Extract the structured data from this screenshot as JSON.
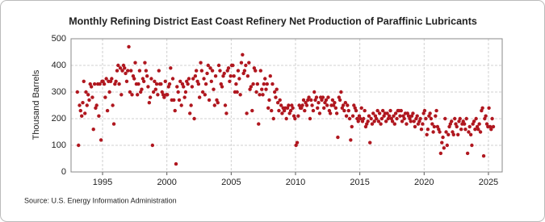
{
  "chart_data": {
    "type": "scatter",
    "title": "Monthly Refining District East Coast Refinery Net Production of Paraffinic Lubricants",
    "y_label": "Thousand Barrels",
    "source": "Source: U.S. Energy Information Administration",
    "xlim": [
      1992.55,
      2026.07
    ],
    "xticks": [
      1995,
      2000,
      2005,
      2010,
      2015,
      2020,
      2025
    ],
    "ylim": [
      0,
      500
    ],
    "yticks": [
      0,
      100,
      200,
      300,
      400,
      500
    ],
    "grid": true,
    "series": [
      {
        "color": "#b0171f",
        "x": [
          1993.04,
          1993.13,
          1993.21,
          1993.29,
          1993.38,
          1993.46,
          1993.54,
          1993.63,
          1993.71,
          1993.79,
          1993.88,
          1993.96,
          1994.04,
          1994.13,
          1994.21,
          1994.29,
          1994.38,
          1994.46,
          1994.54,
          1994.63,
          1994.71,
          1994.79,
          1994.88,
          1994.96,
          1995.04,
          1995.13,
          1995.21,
          1995.29,
          1995.38,
          1995.46,
          1995.54,
          1995.63,
          1995.71,
          1995.79,
          1995.88,
          1995.96,
          1996.04,
          1996.13,
          1996.21,
          1996.29,
          1996.38,
          1996.46,
          1996.54,
          1996.63,
          1996.71,
          1996.79,
          1996.88,
          1996.96,
          1997.04,
          1997.13,
          1997.21,
          1997.29,
          1997.38,
          1997.46,
          1997.54,
          1997.63,
          1997.71,
          1997.79,
          1997.88,
          1997.96,
          1998.04,
          1998.13,
          1998.21,
          1998.29,
          1998.38,
          1998.46,
          1998.54,
          1998.63,
          1998.71,
          1998.79,
          1998.88,
          1998.96,
          1999.04,
          1999.13,
          1999.21,
          1999.29,
          1999.38,
          1999.46,
          1999.54,
          1999.63,
          1999.71,
          1999.79,
          1999.88,
          1999.96,
          2000.04,
          2000.13,
          2000.21,
          2000.29,
          2000.38,
          2000.46,
          2000.54,
          2000.63,
          2000.71,
          2000.79,
          2000.88,
          2000.96,
          2001.04,
          2001.13,
          2001.21,
          2001.29,
          2001.38,
          2001.46,
          2001.54,
          2001.63,
          2001.71,
          2001.79,
          2001.88,
          2001.96,
          2002.04,
          2002.13,
          2002.21,
          2002.29,
          2002.38,
          2002.46,
          2002.54,
          2002.63,
          2002.71,
          2002.79,
          2002.88,
          2002.96,
          2003.04,
          2003.13,
          2003.21,
          2003.29,
          2003.38,
          2003.46,
          2003.54,
          2003.63,
          2003.71,
          2003.79,
          2003.88,
          2003.96,
          2004.04,
          2004.13,
          2004.21,
          2004.29,
          2004.38,
          2004.46,
          2004.54,
          2004.63,
          2004.71,
          2004.79,
          2004.88,
          2004.96,
          2005.04,
          2005.13,
          2005.21,
          2005.29,
          2005.38,
          2005.46,
          2005.54,
          2005.63,
          2005.71,
          2005.79,
          2005.88,
          2005.96,
          2006.04,
          2006.13,
          2006.21,
          2006.29,
          2006.38,
          2006.46,
          2006.54,
          2006.63,
          2006.71,
          2006.79,
          2006.88,
          2006.96,
          2007.04,
          2007.13,
          2007.21,
          2007.29,
          2007.38,
          2007.46,
          2007.54,
          2007.63,
          2007.71,
          2007.79,
          2007.88,
          2007.96,
          2008.04,
          2008.13,
          2008.21,
          2008.29,
          2008.38,
          2008.46,
          2008.54,
          2008.63,
          2008.71,
          2008.79,
          2008.88,
          2008.96,
          2009.04,
          2009.13,
          2009.21,
          2009.29,
          2009.38,
          2009.46,
          2009.54,
          2009.63,
          2009.71,
          2009.79,
          2009.88,
          2009.96,
          2010.04,
          2010.13,
          2010.21,
          2010.29,
          2010.38,
          2010.46,
          2010.54,
          2010.63,
          2010.71,
          2010.79,
          2010.88,
          2010.96,
          2011.04,
          2011.13,
          2011.21,
          2011.29,
          2011.38,
          2011.46,
          2011.54,
          2011.63,
          2011.71,
          2011.79,
          2011.88,
          2011.96,
          2012.04,
          2012.13,
          2012.21,
          2012.29,
          2012.38,
          2012.46,
          2012.54,
          2012.63,
          2012.71,
          2012.79,
          2012.88,
          2012.96,
          2013.04,
          2013.13,
          2013.21,
          2013.29,
          2013.38,
          2013.46,
          2013.54,
          2013.63,
          2013.71,
          2013.79,
          2013.88,
          2013.96,
          2014.04,
          2014.13,
          2014.21,
          2014.29,
          2014.38,
          2014.46,
          2014.54,
          2014.63,
          2014.71,
          2014.79,
          2014.88,
          2014.96,
          2015.04,
          2015.13,
          2015.21,
          2015.29,
          2015.38,
          2015.46,
          2015.54,
          2015.63,
          2015.71,
          2015.79,
          2015.88,
          2015.96,
          2016.04,
          2016.13,
          2016.21,
          2016.29,
          2016.38,
          2016.46,
          2016.54,
          2016.63,
          2016.71,
          2016.79,
          2016.88,
          2016.96,
          2017.04,
          2017.13,
          2017.21,
          2017.29,
          2017.38,
          2017.46,
          2017.54,
          2017.63,
          2017.71,
          2017.79,
          2017.88,
          2017.96,
          2018.04,
          2018.13,
          2018.21,
          2018.29,
          2018.38,
          2018.46,
          2018.54,
          2018.63,
          2018.71,
          2018.79,
          2018.88,
          2018.96,
          2019.04,
          2019.13,
          2019.21,
          2019.29,
          2019.38,
          2019.46,
          2019.54,
          2019.63,
          2019.71,
          2019.79,
          2019.88,
          2019.96,
          2020.04,
          2020.13,
          2020.21,
          2020.29,
          2020.38,
          2020.46,
          2020.54,
          2020.63,
          2020.71,
          2020.79,
          2020.88,
          2020.96,
          2021.04,
          2021.13,
          2021.21,
          2021.29,
          2021.38,
          2021.46,
          2021.54,
          2021.63,
          2021.71,
          2021.79,
          2021.88,
          2021.96,
          2022.04,
          2022.13,
          2022.21,
          2022.29,
          2022.38,
          2022.46,
          2022.54,
          2022.63,
          2022.71,
          2022.79,
          2022.88,
          2022.96,
          2023.04,
          2023.13,
          2023.21,
          2023.29,
          2023.38,
          2023.46,
          2023.54,
          2023.63,
          2023.71,
          2023.79,
          2023.88,
          2023.96,
          2024.04,
          2024.13,
          2024.21,
          2024.29,
          2024.38,
          2024.46,
          2024.54,
          2024.63,
          2024.71,
          2024.79,
          2024.88,
          2024.96,
          2025.04,
          2025.13,
          2025.21,
          2025.29,
          2025.38
        ],
        "values": [
          300,
          100,
          250,
          230,
          210,
          260,
          340,
          220,
          300,
          250,
          290,
          270,
          330,
          320,
          280,
          160,
          330,
          240,
          250,
          330,
          210,
          330,
          120,
          340,
          340,
          330,
          280,
          350,
          230,
          340,
          300,
          340,
          350,
          250,
          180,
          330,
          340,
          380,
          400,
          330,
          390,
          290,
          380,
          400,
          390,
          370,
          340,
          380,
          470,
          300,
          380,
          290,
          360,
          350,
          410,
          330,
          290,
          330,
          380,
          300,
          310,
          350,
          340,
          410,
          380,
          360,
          320,
          260,
          280,
          350,
          100,
          300,
          340,
          310,
          330,
          290,
          380,
          330,
          330,
          300,
          290,
          280,
          340,
          290,
          290,
          320,
          330,
          390,
          270,
          350,
          270,
          230,
          30,
          320,
          300,
          270,
          340,
          250,
          330,
          320,
          280,
          300,
          340,
          330,
          350,
          220,
          250,
          320,
          350,
          200,
          360,
          380,
          340,
          330,
          280,
          410,
          380,
          300,
          350,
          290,
          330,
          370,
          400,
          270,
          390,
          340,
          380,
          310,
          250,
          360,
          270,
          260,
          400,
          380,
          330,
          320,
          360,
          370,
          250,
          220,
          380,
          390,
          340,
          360,
          400,
          400,
          360,
          300,
          330,
          300,
          380,
          350,
          290,
          410,
          440,
          370,
          380,
          400,
          220,
          360,
          410,
          310,
          320,
          230,
          330,
          390,
          380,
          300,
          330,
          180,
          290,
          380,
          310,
          290,
          330,
          350,
          310,
          330,
          240,
          270,
          360,
          230,
          330,
          200,
          300,
          280,
          310,
          260,
          230,
          270,
          250,
          220,
          240,
          230,
          240,
          200,
          240,
          250,
          220,
          230,
          250,
          240,
          210,
          200,
          100,
          110,
          210,
          250,
          240,
          240,
          250,
          270,
          230,
          260,
          250,
          270,
          280,
          200,
          270,
          250,
          230,
          300,
          270,
          280,
          240,
          260,
          220,
          280,
          270,
          280,
          240,
          260,
          270,
          250,
          280,
          230,
          220,
          250,
          270,
          250,
          260,
          240,
          220,
          130,
          280,
          270,
          300,
          240,
          250,
          230,
          260,
          210,
          250,
          230,
          200,
          120,
          170,
          210,
          250,
          240,
          230,
          200,
          190,
          210,
          200,
          240,
          190,
          200,
          230,
          170,
          180,
          190,
          210,
          110,
          200,
          180,
          220,
          190,
          210,
          200,
          230,
          190,
          220,
          180,
          200,
          230,
          210,
          220,
          190,
          220,
          200,
          210,
          230,
          200,
          190,
          210,
          180,
          220,
          200,
          230,
          230,
          210,
          230,
          190,
          210,
          200,
          220,
          180,
          220,
          210,
          200,
          190,
          210,
          220,
          190,
          170,
          200,
          210,
          180,
          190,
          200,
          160,
          180,
          220,
          230,
          200,
          140,
          160,
          210,
          220,
          200,
          180,
          150,
          170,
          210,
          230,
          170,
          160,
          150,
          70,
          110,
          130,
          90,
          200,
          150,
          100,
          140,
          170,
          180,
          190,
          150,
          140,
          200,
          180,
          170,
          140,
          190,
          200,
          160,
          180,
          190,
          180,
          160,
          200,
          70,
          150,
          170,
          140,
          100,
          180,
          190,
          160,
          200,
          170,
          160,
          180,
          150,
          230,
          240,
          60,
          200,
          210,
          180,
          170,
          240,
          170,
          160,
          200,
          170
        ]
      }
    ]
  }
}
